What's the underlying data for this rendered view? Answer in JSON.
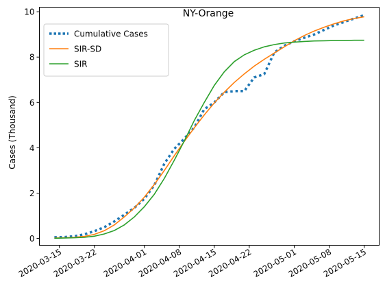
{
  "chart_data": {
    "type": "line",
    "title": "NY-Orange",
    "xlabel": "",
    "ylabel": "Cases (Thousand)",
    "xlim": [
      "2020-03-11",
      "2020-05-18"
    ],
    "ylim": [
      -0.3,
      10.2
    ],
    "x_tick_labels": [
      "2020-03-15",
      "2020-03-22",
      "2020-04-01",
      "2020-04-08",
      "2020-04-15",
      "2020-04-22",
      "2020-05-01",
      "2020-05-08",
      "2020-05-15"
    ],
    "y_ticks": [
      0,
      2,
      4,
      6,
      8,
      10
    ],
    "grid": false,
    "legend_position": "upper-left",
    "series": [
      {
        "name": "Cumulative Cases",
        "color": "#1f77b4",
        "style": "dotted",
        "x": [
          "2020-03-14",
          "2020-03-16",
          "2020-03-18",
          "2020-03-20",
          "2020-03-22",
          "2020-03-24",
          "2020-03-26",
          "2020-03-28",
          "2020-03-30",
          "2020-04-01",
          "2020-04-03",
          "2020-04-05",
          "2020-04-07",
          "2020-04-09",
          "2020-04-11",
          "2020-04-13",
          "2020-04-15",
          "2020-04-17",
          "2020-04-19",
          "2020-04-21",
          "2020-04-23",
          "2020-04-25",
          "2020-04-27",
          "2020-04-29",
          "2020-05-01",
          "2020-05-03",
          "2020-05-05",
          "2020-05-07",
          "2020-05-09",
          "2020-05-11",
          "2020-05-13",
          "2020-05-15"
        ],
        "y": [
          0.05,
          0.06,
          0.1,
          0.18,
          0.32,
          0.5,
          0.75,
          1.05,
          1.35,
          1.75,
          2.35,
          3.3,
          3.95,
          4.4,
          4.9,
          5.7,
          6.0,
          6.45,
          6.5,
          6.5,
          7.1,
          7.25,
          8.2,
          8.5,
          8.7,
          8.85,
          9.0,
          9.2,
          9.4,
          9.55,
          9.7,
          9.85
        ]
      },
      {
        "name": "SIR-SD",
        "color": "#ff7f0e",
        "style": "solid",
        "x": [
          "2020-03-14",
          "2020-03-16",
          "2020-03-18",
          "2020-03-20",
          "2020-03-22",
          "2020-03-24",
          "2020-03-26",
          "2020-03-28",
          "2020-03-30",
          "2020-04-01",
          "2020-04-03",
          "2020-04-05",
          "2020-04-07",
          "2020-04-09",
          "2020-04-11",
          "2020-04-13",
          "2020-04-15",
          "2020-04-17",
          "2020-04-19",
          "2020-04-21",
          "2020-04-23",
          "2020-04-25",
          "2020-04-27",
          "2020-04-29",
          "2020-05-01",
          "2020-05-03",
          "2020-05-05",
          "2020-05-07",
          "2020-05-09",
          "2020-05-11",
          "2020-05-13",
          "2020-05-15"
        ],
        "y": [
          0.02,
          0.03,
          0.05,
          0.09,
          0.18,
          0.34,
          0.6,
          0.95,
          1.35,
          1.82,
          2.38,
          3.0,
          3.65,
          4.28,
          4.88,
          5.45,
          5.98,
          6.45,
          6.88,
          7.26,
          7.6,
          7.9,
          8.18,
          8.45,
          8.72,
          8.95,
          9.15,
          9.32,
          9.47,
          9.6,
          9.7,
          9.78
        ]
      },
      {
        "name": "SIR",
        "color": "#2ca02c",
        "style": "solid",
        "x": [
          "2020-03-14",
          "2020-03-16",
          "2020-03-18",
          "2020-03-20",
          "2020-03-22",
          "2020-03-24",
          "2020-03-26",
          "2020-03-28",
          "2020-03-30",
          "2020-04-01",
          "2020-04-03",
          "2020-04-05",
          "2020-04-07",
          "2020-04-09",
          "2020-04-11",
          "2020-04-13",
          "2020-04-15",
          "2020-04-17",
          "2020-04-19",
          "2020-04-21",
          "2020-04-23",
          "2020-04-25",
          "2020-04-27",
          "2020-04-29",
          "2020-05-01",
          "2020-05-03",
          "2020-05-05",
          "2020-05-07",
          "2020-05-09",
          "2020-05-11",
          "2020-05-13",
          "2020-05-15"
        ],
        "y": [
          0.01,
          0.02,
          0.03,
          0.05,
          0.1,
          0.2,
          0.35,
          0.6,
          0.95,
          1.4,
          1.95,
          2.65,
          3.45,
          4.3,
          5.2,
          6.0,
          6.75,
          7.35,
          7.8,
          8.1,
          8.3,
          8.45,
          8.55,
          8.62,
          8.66,
          8.69,
          8.71,
          8.72,
          8.73,
          8.73,
          8.74,
          8.74
        ]
      }
    ]
  }
}
